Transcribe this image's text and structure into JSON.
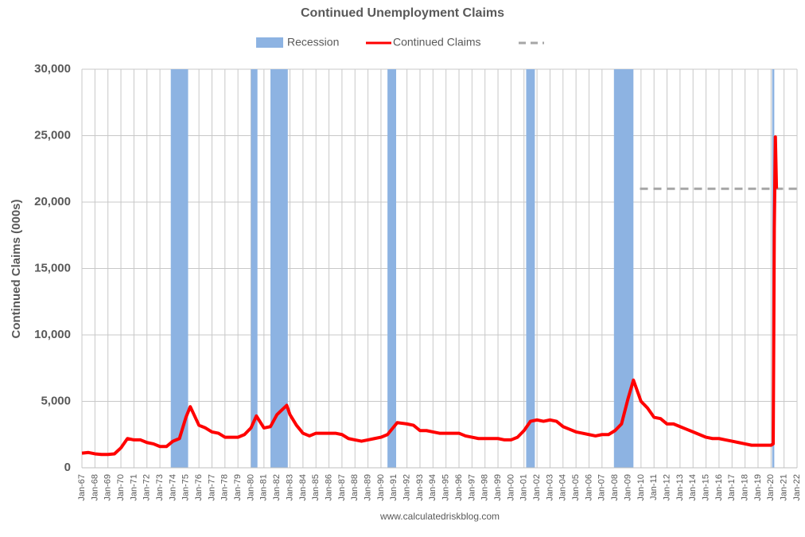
{
  "chart_data": {
    "type": "line",
    "title": "Continued Unemployment Claims",
    "y_label": "Continued Claims (000s)",
    "source": "www.calculatedriskblog.com",
    "ylim": [
      0,
      30000
    ],
    "yticks": [
      {
        "value": 0,
        "label": "0"
      },
      {
        "value": 5000,
        "label": "5,000"
      },
      {
        "value": 10000,
        "label": "10,000"
      },
      {
        "value": 15000,
        "label": "15,000"
      },
      {
        "value": 20000,
        "label": "20,000"
      },
      {
        "value": 25000,
        "label": "25,000"
      },
      {
        "value": 30000,
        "label": "30,000"
      }
    ],
    "xlim": [
      "Jan-67",
      "Jan-22"
    ],
    "xticks": [
      "Jan-67",
      "Jan-68",
      "Jan-69",
      "Jan-70",
      "Jan-71",
      "Jan-72",
      "Jan-73",
      "Jan-74",
      "Jan-75",
      "Jan-76",
      "Jan-77",
      "Jan-78",
      "Jan-79",
      "Jan-80",
      "Jan-81",
      "Jan-82",
      "Jan-83",
      "Jan-84",
      "Jan-85",
      "Jan-86",
      "Jan-87",
      "Jan-88",
      "Jan-89",
      "Jan-90",
      "Jan-91",
      "Jan-92",
      "Jan-93",
      "Jan-94",
      "Jan-95",
      "Jan-96",
      "Jan-97",
      "Jan-98",
      "Jan-99",
      "Jan-00",
      "Jan-01",
      "Jan-02",
      "Jan-03",
      "Jan-04",
      "Jan-05",
      "Jan-06",
      "Jan-07",
      "Jan-08",
      "Jan-09",
      "Jan-10",
      "Jan-11",
      "Jan-12",
      "Jan-13",
      "Jan-14",
      "Jan-15",
      "Jan-16",
      "Jan-17",
      "Jan-18",
      "Jan-19",
      "Jan-20",
      "Jan-21",
      "Jan-22"
    ],
    "grid": true,
    "recessions": {
      "name": "Recession",
      "color": "#8db3e2",
      "periods": [
        [
          "Nov-73",
          "Mar-75"
        ],
        [
          "Jan-80",
          "Jul-80"
        ],
        [
          "Jul-81",
          "Nov-82"
        ],
        [
          "Jul-90",
          "Mar-91"
        ],
        [
          "Mar-01",
          "Nov-01"
        ],
        [
          "Dec-07",
          "Jun-09"
        ],
        [
          "Feb-20",
          "Apr-20"
        ]
      ]
    },
    "reference_line": {
      "color": "#a6a6a6",
      "value": 21000,
      "x": [
        "Dec-09",
        "Jan-22"
      ]
    },
    "series": [
      {
        "name": "Continued Claims",
        "color": "#ff0000",
        "x": [
          "Jan-67",
          "Jul-67",
          "Jan-68",
          "Jul-68",
          "Jan-69",
          "Jul-69",
          "Jan-70",
          "Jul-70",
          "Jan-71",
          "Jul-71",
          "Jan-72",
          "Jul-72",
          "Jan-73",
          "Jul-73",
          "Jan-74",
          "Jul-74",
          "Jan-75",
          "May-75",
          "Jan-76",
          "Jul-76",
          "Jan-77",
          "Jul-77",
          "Jan-78",
          "Jul-78",
          "Jan-79",
          "Jul-79",
          "Jan-80",
          "Jun-80",
          "Jan-81",
          "Jul-81",
          "Jan-82",
          "Oct-82",
          "Jan-83",
          "Jul-83",
          "Jan-84",
          "Jul-84",
          "Jan-85",
          "Jul-85",
          "Jan-86",
          "Jul-86",
          "Jan-87",
          "Jul-87",
          "Jan-88",
          "Jul-88",
          "Jan-89",
          "Jul-89",
          "Jan-90",
          "Jul-90",
          "Apr-91",
          "Jan-92",
          "Jul-92",
          "Jan-93",
          "Jul-93",
          "Jan-94",
          "Jul-94",
          "Jan-95",
          "Jul-95",
          "Jan-96",
          "Jul-96",
          "Jan-97",
          "Jul-97",
          "Jan-98",
          "Jul-98",
          "Jan-99",
          "Jul-99",
          "Jan-00",
          "Jul-00",
          "Jan-01",
          "Jul-01",
          "Jan-02",
          "Jul-02",
          "Jan-03",
          "Jul-03",
          "Jan-04",
          "Jul-04",
          "Jan-05",
          "Jul-05",
          "Jan-06",
          "Jul-06",
          "Jan-07",
          "Jul-07",
          "Jan-08",
          "Jul-08",
          "Jan-09",
          "Jun-09",
          "Jan-10",
          "Jul-10",
          "Jan-11",
          "Jul-11",
          "Jan-12",
          "Jul-12",
          "Jan-13",
          "Jul-13",
          "Jan-14",
          "Jul-14",
          "Jan-15",
          "Jul-15",
          "Jan-16",
          "Jul-16",
          "Jan-17",
          "Jul-17",
          "Jan-18",
          "Jul-18",
          "Jan-19",
          "Jul-19",
          "Jan-20",
          "Mar-20",
          "Apr-20",
          "May-20",
          "Jun-20"
        ],
        "values": [
          1100,
          1150,
          1050,
          1000,
          1000,
          1050,
          1500,
          2200,
          2100,
          2100,
          1900,
          1800,
          1600,
          1600,
          2000,
          2200,
          3800,
          4600,
          3200,
          3000,
          2700,
          2600,
          2300,
          2300,
          2300,
          2500,
          3000,
          3900,
          3000,
          3100,
          4000,
          4700,
          4000,
          3200,
          2600,
          2400,
          2600,
          2600,
          2600,
          2600,
          2500,
          2200,
          2100,
          2000,
          2100,
          2200,
          2300,
          2500,
          3400,
          3300,
          3200,
          2800,
          2800,
          2700,
          2600,
          2600,
          2600,
          2600,
          2400,
          2300,
          2200,
          2200,
          2200,
          2200,
          2100,
          2100,
          2300,
          2800,
          3500,
          3600,
          3500,
          3600,
          3500,
          3100,
          2900,
          2700,
          2600,
          2500,
          2400,
          2500,
          2500,
          2800,
          3300,
          5200,
          6600,
          5000,
          4500,
          3800,
          3700,
          3300,
          3300,
          3100,
          2900,
          2700,
          2500,
          2300,
          2200,
          2200,
          2100,
          2000,
          1900,
          1800,
          1700,
          1700,
          1700,
          1700,
          1800,
          18000,
          24900,
          21000
        ]
      }
    ]
  }
}
